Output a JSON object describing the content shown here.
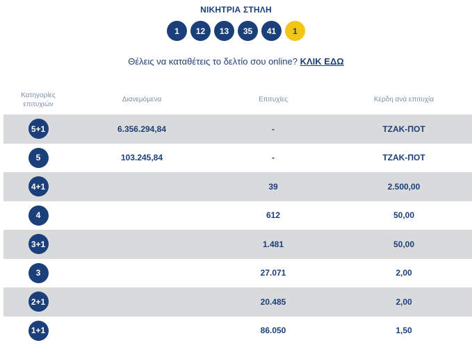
{
  "title": "ΝΙΚΗΤΡΙΑ ΣΤΗΛΗ",
  "winning_numbers": [
    "1",
    "12",
    "13",
    "35",
    "41"
  ],
  "bonus_number": "1",
  "colors": {
    "primary": "#1b3f78",
    "bonus": "#f3c515",
    "row_alt": "#d9dadc"
  },
  "promo": {
    "text": "Θέλεις να καταθέτεις το δελτίο σου online? ",
    "link": "ΚΛΙΚ ΕΔΩ"
  },
  "table": {
    "headers": {
      "category_line1": "Κατηγορίες",
      "category_line2": "επιτυχιών",
      "distributed": "Διανεμόμενα",
      "winners": "Επιτυχίες",
      "prize": "Κέρδη ανά επιτυχία"
    },
    "rows": [
      {
        "category": "5+1",
        "distributed": "6.356.294,84",
        "winners": "-",
        "prize": "ΤΖΑΚ-ΠΟΤ"
      },
      {
        "category": "5",
        "distributed": "103.245,84",
        "winners": "-",
        "prize": "ΤΖΑΚ-ΠΟΤ"
      },
      {
        "category": "4+1",
        "distributed": "",
        "winners": "39",
        "prize": "2.500,00"
      },
      {
        "category": "4",
        "distributed": "",
        "winners": "612",
        "prize": "50,00"
      },
      {
        "category": "3+1",
        "distributed": "",
        "winners": "1.481",
        "prize": "50,00"
      },
      {
        "category": "3",
        "distributed": "",
        "winners": "27.071",
        "prize": "2,00"
      },
      {
        "category": "2+1",
        "distributed": "",
        "winners": "20.485",
        "prize": "2,00"
      },
      {
        "category": "1+1",
        "distributed": "",
        "winners": "86.050",
        "prize": "1,50"
      }
    ]
  }
}
